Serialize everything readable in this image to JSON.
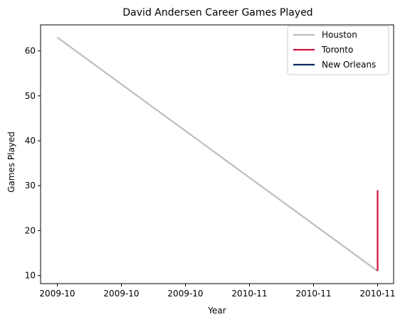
{
  "chart_data": {
    "type": "line",
    "title": "David Andersen Career Games Played",
    "xlabel": "Year",
    "ylabel": "Games Played",
    "x_tick_labels": [
      "2009-10",
      "2009-10",
      "2009-10",
      "2010-11",
      "2010-11",
      "2010-11"
    ],
    "y_ticks": [
      10,
      20,
      30,
      40,
      50,
      60
    ],
    "ylim": [
      8.2,
      65.8
    ],
    "grid": false,
    "legend_position": "top-right",
    "series": [
      {
        "name": "Houston",
        "color": "#bebebe",
        "points": [
          {
            "x": 0,
            "y": 63
          },
          {
            "x": 5,
            "y": 11
          }
        ]
      },
      {
        "name": "Toronto",
        "color": "#ce1141",
        "points": [
          {
            "x": 5,
            "y": 11
          },
          {
            "x": 5,
            "y": 29
          }
        ]
      },
      {
        "name": "New Orleans",
        "color": "#002b5c",
        "points": []
      }
    ]
  }
}
